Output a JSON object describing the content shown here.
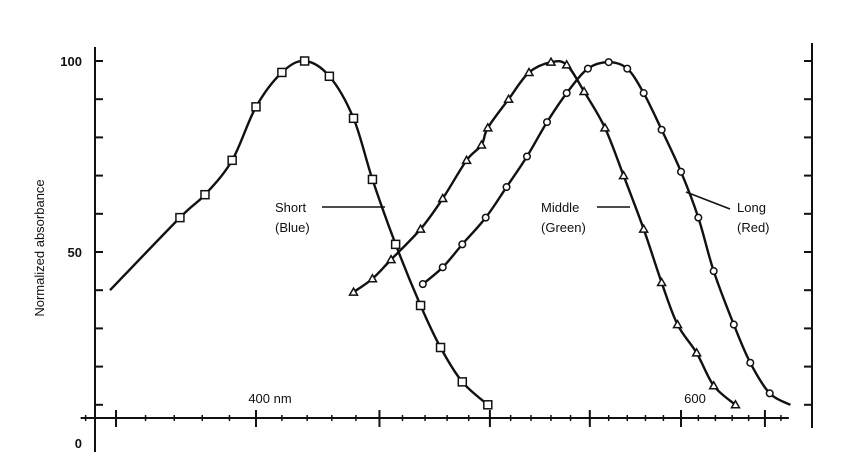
{
  "chart_data": {
    "type": "line",
    "title": "",
    "xlabel": "",
    "ylabel": "Normalized absorbance",
    "x_unit": "nm",
    "x_scale": "log",
    "xlim": [
      340,
      665
    ],
    "ylim": [
      0,
      100
    ],
    "grid": false,
    "y_ticks": [
      {
        "value": 100,
        "label": "100"
      },
      {
        "value": 50,
        "label": "50"
      },
      {
        "value": 0,
        "label": "0"
      }
    ],
    "y_minor_step": 10,
    "x_major_ticks": [
      350,
      400,
      450,
      500,
      550,
      600,
      650
    ],
    "x_minor_step": 10,
    "x_tick_labels": [
      {
        "value": 400,
        "label": "400 nm"
      },
      {
        "value": 600,
        "label": "600"
      }
    ],
    "series": [
      {
        "name": "Short (Blue)",
        "label_line1": "Short",
        "label_line2": "(Blue)",
        "marker": "square",
        "color": "#111111",
        "curve_start": [
          348,
          40
        ],
        "x": [
          372,
          381,
          391,
          400,
          410,
          419,
          429,
          439,
          447,
          457,
          468,
          477,
          487,
          499
        ],
        "y": [
          59,
          65,
          74,
          88,
          97,
          100,
          96,
          85,
          69,
          52,
          36,
          25,
          16,
          10
        ]
      },
      {
        "name": "Middle (Green)",
        "label_line1": "Middle",
        "label_line2": "(Green)",
        "marker": "triangle",
        "color": "#111111",
        "x": [
          439,
          447,
          455,
          468,
          478,
          489,
          496,
          499,
          509,
          519,
          530,
          538,
          547,
          558,
          568,
          579,
          589,
          598,
          609,
          619,
          632
        ],
        "y": [
          39.5,
          43,
          48,
          56,
          64,
          74,
          78,
          82.5,
          90,
          97,
          99.7,
          99,
          92,
          82.5,
          70,
          56,
          42,
          31,
          23.6,
          15,
          10
        ]
      },
      {
        "name": "Long (Red)",
        "label_line1": "Long",
        "label_line2": "(Red)",
        "marker": "circle",
        "color": "#111111",
        "curve_end": [
          666,
          10
        ],
        "x": [
          469,
          478,
          487,
          498,
          508,
          518,
          528,
          538,
          549,
          560,
          570,
          579,
          589,
          600,
          610,
          619,
          631,
          641,
          653
        ],
        "y": [
          41.6,
          46,
          52,
          59,
          67,
          75,
          84,
          91.6,
          98,
          99.7,
          98,
          91.6,
          82,
          71,
          59,
          45,
          31,
          21,
          13
        ]
      }
    ]
  }
}
